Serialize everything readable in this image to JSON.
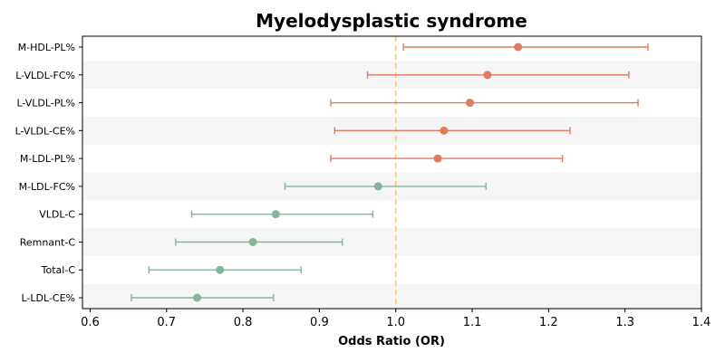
{
  "chart_data": {
    "type": "scatter",
    "title": "Myelodysplastic syndrome",
    "xlabel": "Odds Ratio (OR)",
    "ylabel": "",
    "xlim": [
      0.59,
      1.4
    ],
    "xticks": [
      "0.6",
      "0.7",
      "0.8",
      "0.9",
      "1.0",
      "1.1",
      "1.2",
      "1.3",
      "1.4"
    ],
    "xtick_values": [
      0.6,
      0.7,
      0.8,
      0.9,
      1.0,
      1.1,
      1.2,
      1.3,
      1.4
    ],
    "reference_line": 1.0,
    "reference_line_style": "dashed",
    "row_shading": "alternating",
    "grid": false,
    "colors": {
      "above": "#e07b5f",
      "below": "#82b59a",
      "reference": "#f5c98a",
      "band": "#f5f5f5"
    },
    "points": [
      {
        "label": "M-HDL-PL%",
        "or": 1.16,
        "lower": 1.01,
        "upper": 1.33
      },
      {
        "label": "L-VLDL-FC%",
        "or": 1.12,
        "lower": 0.963,
        "upper": 1.305
      },
      {
        "label": "L-VLDL-PL%",
        "or": 1.097,
        "lower": 0.915,
        "upper": 1.317
      },
      {
        "label": "L-VLDL-CE%",
        "or": 1.063,
        "lower": 0.92,
        "upper": 1.228
      },
      {
        "label": "M-LDL-PL%",
        "or": 1.055,
        "lower": 0.915,
        "upper": 1.218
      },
      {
        "label": "M-LDL-FC%",
        "or": 0.977,
        "lower": 0.855,
        "upper": 1.118
      },
      {
        "label": "VLDL-C",
        "or": 0.843,
        "lower": 0.733,
        "upper": 0.97
      },
      {
        "label": "Remnant-C",
        "or": 0.813,
        "lower": 0.712,
        "upper": 0.93
      },
      {
        "label": "Total-C",
        "or": 0.77,
        "lower": 0.677,
        "upper": 0.876
      },
      {
        "label": "L-LDL-CE%",
        "or": 0.74,
        "lower": 0.654,
        "upper": 0.84
      }
    ]
  }
}
